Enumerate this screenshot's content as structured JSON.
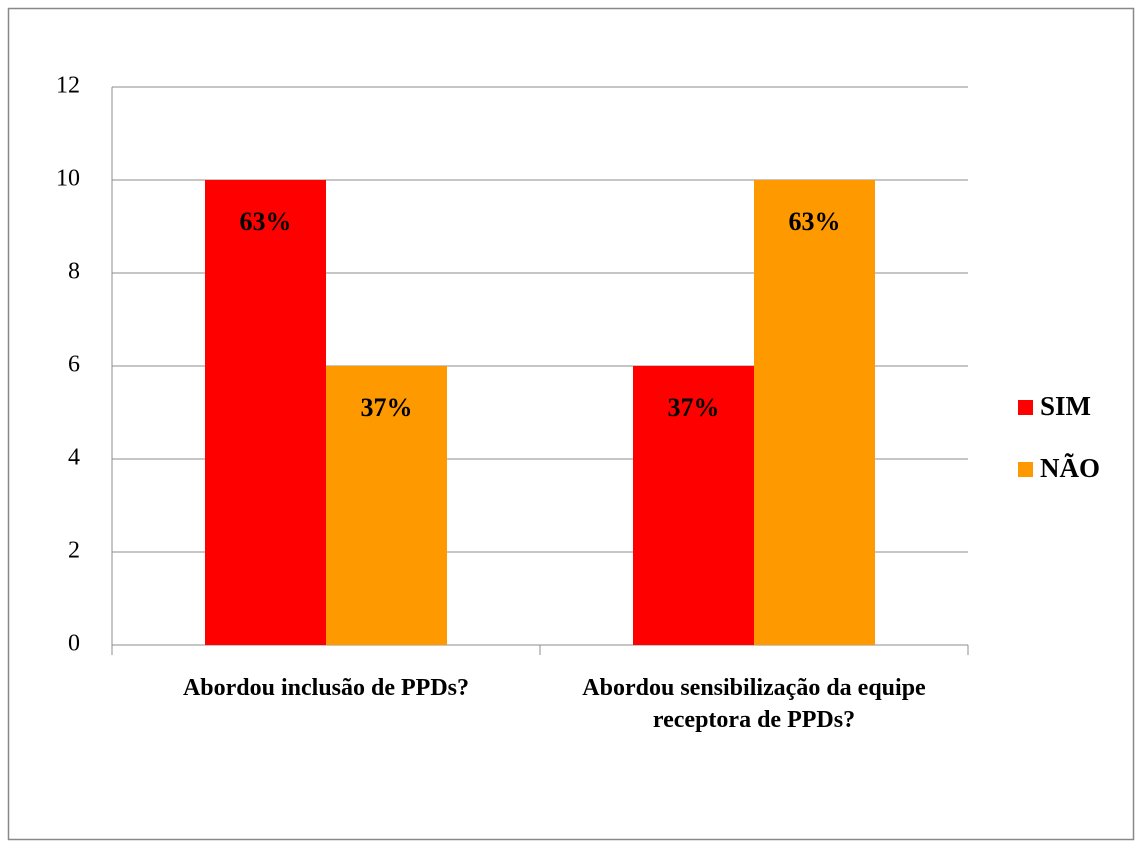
{
  "chart_data": {
    "type": "bar",
    "categories": [
      "Abordou inclusão de PPDs?",
      "Abordou sensibilização da equipe receptora de PPDs?"
    ],
    "series": [
      {
        "name": "SIM",
        "color": "#ff0000",
        "values": [
          10,
          6
        ],
        "value_labels": [
          "63%",
          "37%"
        ]
      },
      {
        "name": "NÃO",
        "color": "#ff9900",
        "values": [
          6,
          10
        ],
        "value_labels": [
          "37%",
          "63%"
        ]
      }
    ],
    "ylim": [
      0,
      12
    ],
    "yticks": [
      0,
      2,
      4,
      6,
      8,
      10,
      12
    ],
    "grid": true,
    "legend": "right"
  }
}
